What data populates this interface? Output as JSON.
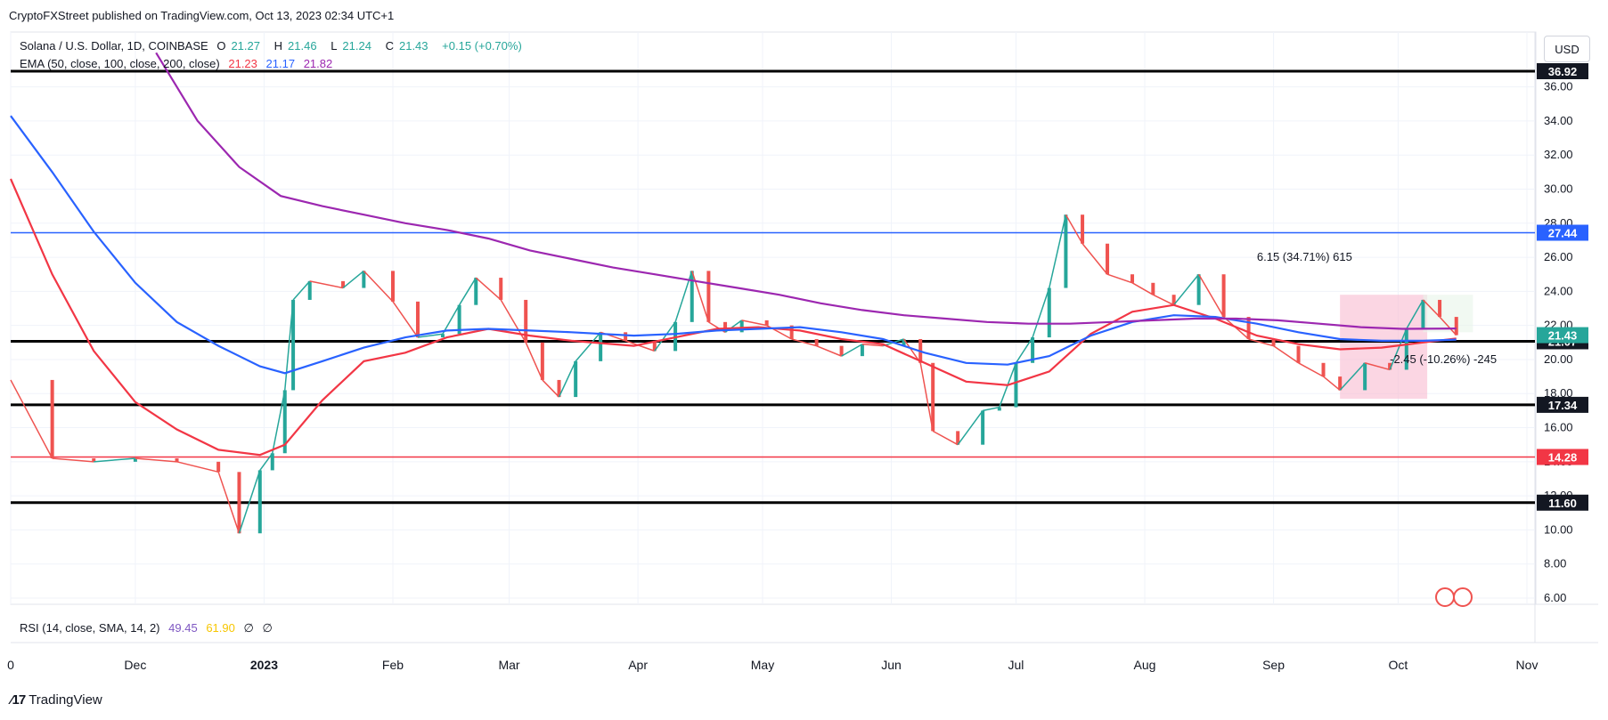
{
  "header": {
    "published": "CryptoFXStreet published on TradingView.com, Oct 13, 2023 02:34 UTC+1"
  },
  "legend": {
    "symbol": "Solana / U.S. Dollar, 1D, COINBASE",
    "o_label": "O",
    "o_value": "21.27",
    "h_label": "H",
    "h_value": "21.46",
    "l_label": "L",
    "l_value": "21.24",
    "c_label": "C",
    "c_value": "21.43",
    "change": "+0.15 (+0.70%)",
    "ema_label": "EMA (50, close, 100, close, 200, close)",
    "ema50": "21.23",
    "ema100": "21.17",
    "ema200": "21.82",
    "rsi_label": "RSI (14, close, SMA, 14, 2)",
    "rsi_value": "49.45",
    "rsi_sma": "61.90",
    "rsi_extra1": "∅",
    "rsi_extra2": "∅"
  },
  "usd_button": "USD",
  "footer_logo": "TradingView",
  "colors": {
    "up": "#26a69a",
    "down": "#ef5350",
    "ema50": "#f23645",
    "ema100": "#2962ff",
    "ema200": "#9c27b0",
    "blue_level": "#2962ff",
    "red_level": "#f23645"
  },
  "chart_data": {
    "type": "line",
    "symbol": "SOLUSD",
    "ylim": [
      5,
      37.5
    ],
    "y_ticks": [
      "6.00",
      "8.00",
      "10.00",
      "12.00",
      "14.00",
      "16.00",
      "18.00",
      "20.00",
      "22.00",
      "24.00",
      "26.00",
      "28.00",
      "30.00",
      "32.00",
      "34.00",
      "36.00"
    ],
    "x_labels": [
      {
        "label": "0",
        "x": 0
      },
      {
        "label": "Dec",
        "x": 30
      },
      {
        "label": "2023",
        "x": 61
      },
      {
        "label": "Feb",
        "x": 92
      },
      {
        "label": "Mar",
        "x": 120
      },
      {
        "label": "Apr",
        "x": 151
      },
      {
        "label": "May",
        "x": 181
      },
      {
        "label": "Jun",
        "x": 212
      },
      {
        "label": "Jul",
        "x": 242
      },
      {
        "label": "Aug",
        "x": 273
      },
      {
        "label": "Sep",
        "x": 304
      },
      {
        "label": "Oct",
        "x": 334
      },
      {
        "label": "Nov",
        "x": 365
      }
    ],
    "horizontal_levels": [
      {
        "value": 36.92,
        "label": "36.92",
        "color": "#000000",
        "bg": "#131722"
      },
      {
        "value": 27.44,
        "label": "27.44",
        "color": "#2962ff",
        "bg": "#2962ff"
      },
      {
        "value": 21.07,
        "label": "21.07",
        "color": "#000000",
        "bg": "#131722"
      },
      {
        "value": 17.34,
        "label": "17.34",
        "color": "#000000",
        "bg": "#131722"
      },
      {
        "value": 14.28,
        "label": "14.28",
        "color": "#f23645",
        "bg": "#f23645"
      },
      {
        "value": 11.6,
        "label": "11.60",
        "color": "#000000",
        "bg": "#131722"
      }
    ],
    "last_price": {
      "value": 21.43,
      "label": "21.43",
      "bg": "#26a69a"
    },
    "price_series": [
      [
        0,
        18.8
      ],
      [
        10,
        14.2
      ],
      [
        20,
        14.0
      ],
      [
        30,
        14.2
      ],
      [
        40,
        14.0
      ],
      [
        50,
        13.4
      ],
      [
        55,
        9.8
      ],
      [
        60,
        13.5
      ],
      [
        63,
        14.5
      ],
      [
        66,
        18.2
      ],
      [
        68,
        23.5
      ],
      [
        72,
        24.6
      ],
      [
        80,
        24.2
      ],
      [
        85,
        25.2
      ],
      [
        92,
        23.4
      ],
      [
        98,
        21.3
      ],
      [
        104,
        21.5
      ],
      [
        108,
        23.2
      ],
      [
        112,
        24.8
      ],
      [
        118,
        23.5
      ],
      [
        124,
        21.0
      ],
      [
        128,
        18.8
      ],
      [
        132,
        17.8
      ],
      [
        136,
        19.9
      ],
      [
        142,
        21.6
      ],
      [
        148,
        21.1
      ],
      [
        155,
        20.5
      ],
      [
        160,
        22.2
      ],
      [
        164,
        25.2
      ],
      [
        168,
        22.2
      ],
      [
        172,
        21.6
      ],
      [
        176,
        22.3
      ],
      [
        182,
        22.0
      ],
      [
        188,
        21.2
      ],
      [
        194,
        20.8
      ],
      [
        200,
        20.2
      ],
      [
        205,
        20.9
      ],
      [
        210,
        20.8
      ],
      [
        215,
        21.2
      ],
      [
        219,
        19.8
      ],
      [
        222,
        15.8
      ],
      [
        228,
        15.0
      ],
      [
        234,
        17.0
      ],
      [
        238,
        17.2
      ],
      [
        242,
        19.8
      ],
      [
        246,
        21.3
      ],
      [
        250,
        24.2
      ],
      [
        254,
        28.5
      ],
      [
        258,
        26.8
      ],
      [
        264,
        25.0
      ],
      [
        270,
        24.5
      ],
      [
        275,
        23.8
      ],
      [
        280,
        23.2
      ],
      [
        286,
        25.0
      ],
      [
        292,
        22.5
      ],
      [
        298,
        21.2
      ],
      [
        304,
        20.8
      ],
      [
        310,
        19.8
      ],
      [
        316,
        19.0
      ],
      [
        320,
        18.2
      ],
      [
        326,
        19.8
      ],
      [
        332,
        19.4
      ],
      [
        336,
        21.8
      ],
      [
        340,
        23.5
      ],
      [
        344,
        22.5
      ],
      [
        348,
        21.43
      ]
    ],
    "series": [
      {
        "name": "EMA 50",
        "color": "#f23645",
        "values": [
          [
            0,
            30.6
          ],
          [
            10,
            25.0
          ],
          [
            20,
            20.5
          ],
          [
            30,
            17.5
          ],
          [
            40,
            15.9
          ],
          [
            50,
            14.7
          ],
          [
            60,
            14.4
          ],
          [
            66,
            15.0
          ],
          [
            75,
            17.6
          ],
          [
            85,
            19.9
          ],
          [
            95,
            20.4
          ],
          [
            105,
            21.3
          ],
          [
            115,
            21.8
          ],
          [
            125,
            21.4
          ],
          [
            135,
            21.1
          ],
          [
            150,
            20.8
          ],
          [
            160,
            21.3
          ],
          [
            170,
            21.8
          ],
          [
            180,
            21.9
          ],
          [
            190,
            21.7
          ],
          [
            200,
            21.2
          ],
          [
            210,
            20.9
          ],
          [
            220,
            19.8
          ],
          [
            230,
            18.7
          ],
          [
            240,
            18.5
          ],
          [
            250,
            19.3
          ],
          [
            260,
            21.5
          ],
          [
            270,
            22.8
          ],
          [
            280,
            23.2
          ],
          [
            290,
            22.4
          ],
          [
            300,
            21.4
          ],
          [
            310,
            20.9
          ],
          [
            320,
            20.6
          ],
          [
            330,
            20.7
          ],
          [
            340,
            21.0
          ],
          [
            348,
            21.23
          ]
        ]
      },
      {
        "name": "EMA 100",
        "color": "#2962ff",
        "values": [
          [
            0,
            34.3
          ],
          [
            10,
            31.0
          ],
          [
            20,
            27.5
          ],
          [
            30,
            24.5
          ],
          [
            40,
            22.2
          ],
          [
            50,
            20.8
          ],
          [
            60,
            19.6
          ],
          [
            66,
            19.2
          ],
          [
            75,
            19.9
          ],
          [
            85,
            20.7
          ],
          [
            95,
            21.3
          ],
          [
            105,
            21.7
          ],
          [
            115,
            21.8
          ],
          [
            125,
            21.7
          ],
          [
            135,
            21.6
          ],
          [
            150,
            21.4
          ],
          [
            160,
            21.5
          ],
          [
            170,
            21.7
          ],
          [
            180,
            21.8
          ],
          [
            190,
            21.9
          ],
          [
            200,
            21.6
          ],
          [
            210,
            21.2
          ],
          [
            220,
            20.4
          ],
          [
            230,
            19.8
          ],
          [
            240,
            19.7
          ],
          [
            250,
            20.2
          ],
          [
            260,
            21.4
          ],
          [
            270,
            22.2
          ],
          [
            280,
            22.6
          ],
          [
            290,
            22.5
          ],
          [
            300,
            22.1
          ],
          [
            310,
            21.6
          ],
          [
            320,
            21.2
          ],
          [
            330,
            21.1
          ],
          [
            340,
            21.1
          ],
          [
            348,
            21.17
          ]
        ]
      },
      {
        "name": "EMA 200",
        "color": "#9c27b0",
        "values": [
          [
            35,
            38.0
          ],
          [
            45,
            34.0
          ],
          [
            55,
            31.3
          ],
          [
            65,
            29.6
          ],
          [
            75,
            29.0
          ],
          [
            85,
            28.5
          ],
          [
            95,
            28.0
          ],
          [
            105,
            27.6
          ],
          [
            115,
            27.1
          ],
          [
            125,
            26.4
          ],
          [
            135,
            25.9
          ],
          [
            145,
            25.4
          ],
          [
            155,
            25.0
          ],
          [
            165,
            24.6
          ],
          [
            175,
            24.2
          ],
          [
            185,
            23.8
          ],
          [
            195,
            23.3
          ],
          [
            205,
            22.9
          ],
          [
            215,
            22.6
          ],
          [
            225,
            22.4
          ],
          [
            235,
            22.2
          ],
          [
            245,
            22.1
          ],
          [
            255,
            22.1
          ],
          [
            265,
            22.2
          ],
          [
            275,
            22.3
          ],
          [
            285,
            22.4
          ],
          [
            295,
            22.4
          ],
          [
            305,
            22.3
          ],
          [
            315,
            22.1
          ],
          [
            325,
            21.9
          ],
          [
            335,
            21.8
          ],
          [
            348,
            21.82
          ]
        ]
      }
    ],
    "annotations": [
      {
        "text": "6.15 (34.71%) 615",
        "x": 300,
        "y": 25.8
      },
      {
        "text": "-2.45 (-10.26%) -245",
        "x": 332,
        "y": 19.8
      }
    ],
    "measure_boxes": [
      {
        "x1": 320,
        "x2": 341,
        "y1": 17.7,
        "y2": 23.8,
        "fill": "#f8bbd0"
      },
      {
        "x1": 340,
        "x2": 352,
        "y1": 21.6,
        "y2": 23.8,
        "fill": "#e8f5e9"
      }
    ],
    "panes": {
      "rsi_label": "RSI (14, close, SMA, 14, 2)"
    }
  }
}
